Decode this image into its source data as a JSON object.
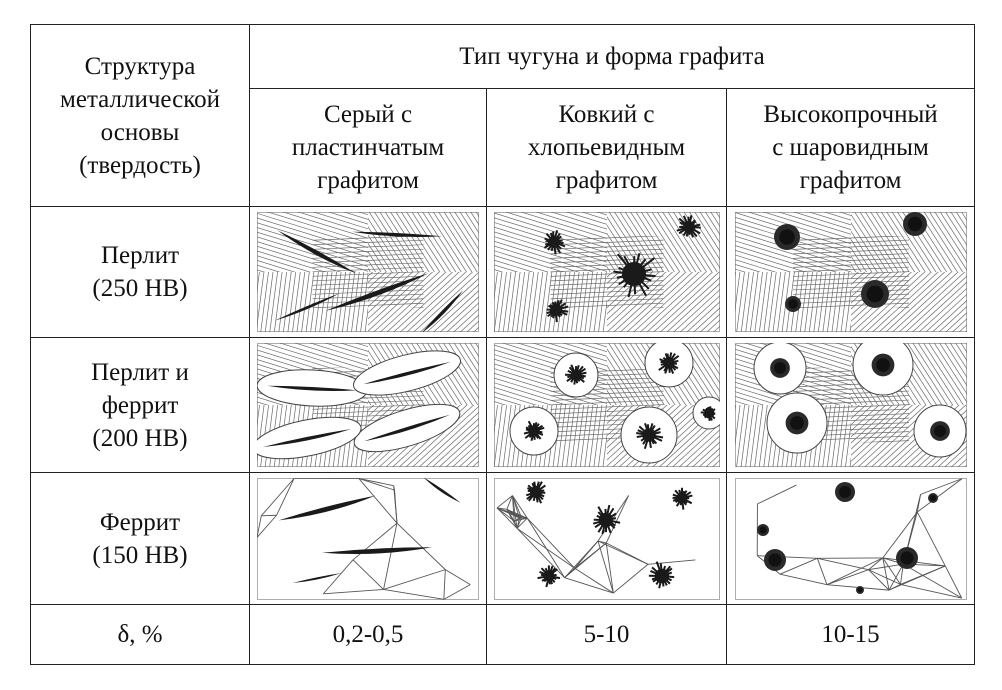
{
  "table": {
    "corner_header": [
      "Структура",
      "металлической",
      "основы",
      "(твердость)"
    ],
    "group_header": "Тип чугуна и форма графита",
    "columns": [
      [
        "Серый с",
        "пластинчатым",
        "графитом"
      ],
      [
        "Ковкий с",
        "хлопьевидным",
        "графитом"
      ],
      [
        "Высокопрочный",
        "с шаровидным",
        "графитом"
      ]
    ],
    "rows": [
      {
        "label": [
          "Перлит",
          "(250 HB)"
        ]
      },
      {
        "label": [
          "Перлит и",
          "феррит",
          "(200 HB)"
        ]
      },
      {
        "label": [
          "Феррит",
          "(150 HB)"
        ]
      }
    ],
    "elongation": {
      "label": "δ, %",
      "values": [
        "0,2-0,5",
        "5-10",
        "10-15"
      ]
    }
  },
  "colors": {
    "ink": "#111111",
    "border": "#222222",
    "graphite": "#1a1a1a",
    "hatch": "#6a6a6a",
    "paper": "#ffffff"
  }
}
